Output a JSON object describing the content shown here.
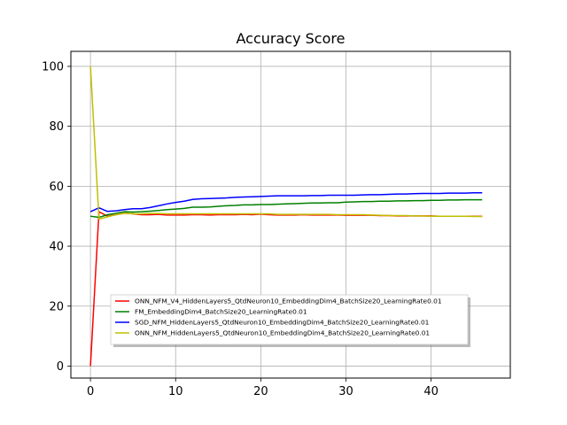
{
  "chart_data": {
    "type": "line",
    "title": "Accuracy Score",
    "xlabel": "",
    "ylabel": "",
    "xlim": [
      -2.3,
      49.3
    ],
    "ylim": [
      -4,
      105
    ],
    "xticks": [
      0,
      10,
      20,
      30,
      40
    ],
    "yticks": [
      0,
      20,
      40,
      60,
      80,
      100
    ],
    "grid": true,
    "legend_position": "lower center",
    "series": [
      {
        "name": "ONN_NFM_V4_HiddenLayers5_QtdNeuron10_EmbeddingDim4_BatchSize20_LearningRate0.01",
        "color": "#ff0000",
        "values": [
          0,
          51.5,
          50,
          50.5,
          51,
          50.8,
          50.5,
          50.5,
          50.6,
          50.4,
          50.4,
          50.4,
          50.5,
          50.5,
          50.4,
          50.5,
          50.5,
          50.5,
          50.6,
          50.5,
          50.7,
          50.5,
          50.4,
          50.4,
          50.4,
          50.5,
          50.4,
          50.4,
          50.4,
          50.4,
          50.3,
          50.3,
          50.3,
          50.3,
          50.2,
          50.2,
          50.1,
          50.1,
          50.1,
          50.1,
          50.1,
          50.0,
          50.0,
          50.0,
          50.0,
          50.0,
          50.0
        ]
      },
      {
        "name": "FM_EmbeddingDim4_BatchSize20_LearningRate0.01",
        "color": "#008000",
        "values": [
          50,
          49.6,
          50.5,
          51.0,
          51.5,
          51.4,
          51.5,
          51.7,
          51.9,
          52.2,
          52.4,
          52.6,
          53.0,
          53.0,
          53.1,
          53.3,
          53.5,
          53.6,
          53.8,
          53.8,
          53.9,
          53.9,
          54.0,
          54.1,
          54.2,
          54.3,
          54.4,
          54.4,
          54.5,
          54.5,
          54.7,
          54.8,
          54.9,
          54.9,
          55.0,
          55.0,
          55.1,
          55.1,
          55.2,
          55.2,
          55.3,
          55.3,
          55.4,
          55.4,
          55.5,
          55.5,
          55.5
        ]
      },
      {
        "name": "SGD_NFM_HiddenLayers5_QtdNeuron10_EmbeddingDim4_BatchSize20_LearningRate0.01",
        "color": "#0000ff",
        "values": [
          51.5,
          52.8,
          51.6,
          51.8,
          52.2,
          52.5,
          52.5,
          52.9,
          53.5,
          54.1,
          54.6,
          55.0,
          55.6,
          55.8,
          55.9,
          56.0,
          56.1,
          56.3,
          56.4,
          56.5,
          56.6,
          56.7,
          56.8,
          56.8,
          56.8,
          56.8,
          56.9,
          56.9,
          57.0,
          57.0,
          57.0,
          57.0,
          57.1,
          57.2,
          57.2,
          57.3,
          57.4,
          57.4,
          57.5,
          57.6,
          57.6,
          57.6,
          57.7,
          57.7,
          57.7,
          57.8,
          57.8
        ]
      },
      {
        "name": "ONN_NFM_HiddenLayers5_QtdNeuron10_EmbeddingDim4_BatchSize20_LearningRate0.01",
        "color": "#bfbf00",
        "values": [
          100,
          49,
          49.8,
          50.5,
          51,
          50.8,
          50.8,
          50.9,
          50.9,
          50.8,
          50.8,
          50.8,
          50.8,
          50.8,
          50.8,
          50.8,
          50.8,
          50.8,
          50.8,
          50.8,
          50.8,
          50.8,
          50.6,
          50.6,
          50.6,
          50.6,
          50.6,
          50.6,
          50.6,
          50.5,
          50.5,
          50.5,
          50.5,
          50.4,
          50.3,
          50.2,
          50.2,
          50.2,
          50.1,
          50.1,
          50.0,
          50.0,
          50.0,
          50.0,
          50.0,
          49.9,
          49.9
        ]
      }
    ]
  }
}
